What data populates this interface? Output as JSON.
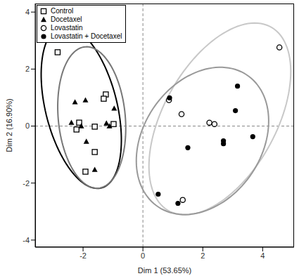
{
  "chart_data": {
    "type": "scatter",
    "x_label": "Dim 1 (53.65%)",
    "y_label": "Dim 2 (16.90%)",
    "xlim": [
      -3.6,
      5.05
    ],
    "ylim": [
      -4.25,
      4.3
    ],
    "xticks": [
      -2,
      0,
      2,
      4
    ],
    "yticks": [
      -4,
      -2,
      0,
      2,
      4
    ],
    "legend": "upper left",
    "grid": false,
    "reference_lines": {
      "x": [
        0
      ],
      "y": [
        0
      ]
    },
    "series": [
      {
        "name": "Control",
        "color": "#000000",
        "marker": "open_square",
        "x": [
          -2.85,
          -1.24,
          -1.31,
          -2.13,
          -2.22,
          -1.61,
          -0.98,
          -1.61,
          -1.92
        ],
        "y": [
          2.59,
          1.11,
          0.96,
          0.12,
          -0.12,
          -0.02,
          0.07,
          -0.91,
          -1.6
        ],
        "ellipse": {
          "color": "#000000",
          "center": [
            -2.06,
            0.66
          ],
          "semi_axes": [
            2.91,
            1.2
          ],
          "angle": 103
        }
      },
      {
        "name": "Docetaxel",
        "color": "#000000",
        "marker": "triangle",
        "x": [
          -2.27,
          -1.92,
          -2.39,
          -2.06,
          -0.96,
          -1.22,
          -1.12,
          -1.89,
          -1.61
        ],
        "y": [
          0.84,
          0.91,
          0.12,
          0.0,
          0.62,
          0.1,
          0.0,
          -0.54,
          -1.53
        ],
        "ellipse": {
          "color": "#777777",
          "center": [
            -1.71,
            0.3
          ],
          "semi_axes": [
            2.49,
            1.12
          ],
          "angle": 95
        }
      },
      {
        "name": "Lovastatin",
        "color": "#000000",
        "marker": "open_circle",
        "x": [
          0.87,
          1.29,
          2.22,
          2.39,
          1.33,
          4.56
        ],
        "y": [
          0.91,
          0.42,
          0.12,
          0.07,
          -2.59,
          2.76
        ],
        "ellipse": {
          "color": "#c8c8c8",
          "center": [
            2.57,
            0.25
          ],
          "semi_axes": [
            3.65,
            1.9
          ],
          "angle": 63
        }
      },
      {
        "name": "Lovastatin + Docetaxel",
        "color": "#000000",
        "marker": "circle",
        "x": [
          0.89,
          3.16,
          3.09,
          2.69,
          2.69,
          1.5,
          0.51,
          1.17,
          3.67
        ],
        "y": [
          0.99,
          1.4,
          0.54,
          -0.52,
          -0.62,
          -0.76,
          -2.39,
          -2.71,
          -0.37
        ],
        "ellipse": {
          "color": "#999999",
          "center": [
            1.99,
            -0.52
          ],
          "semi_axes": [
            2.75,
            2.0
          ],
          "angle": 60
        }
      }
    ]
  }
}
